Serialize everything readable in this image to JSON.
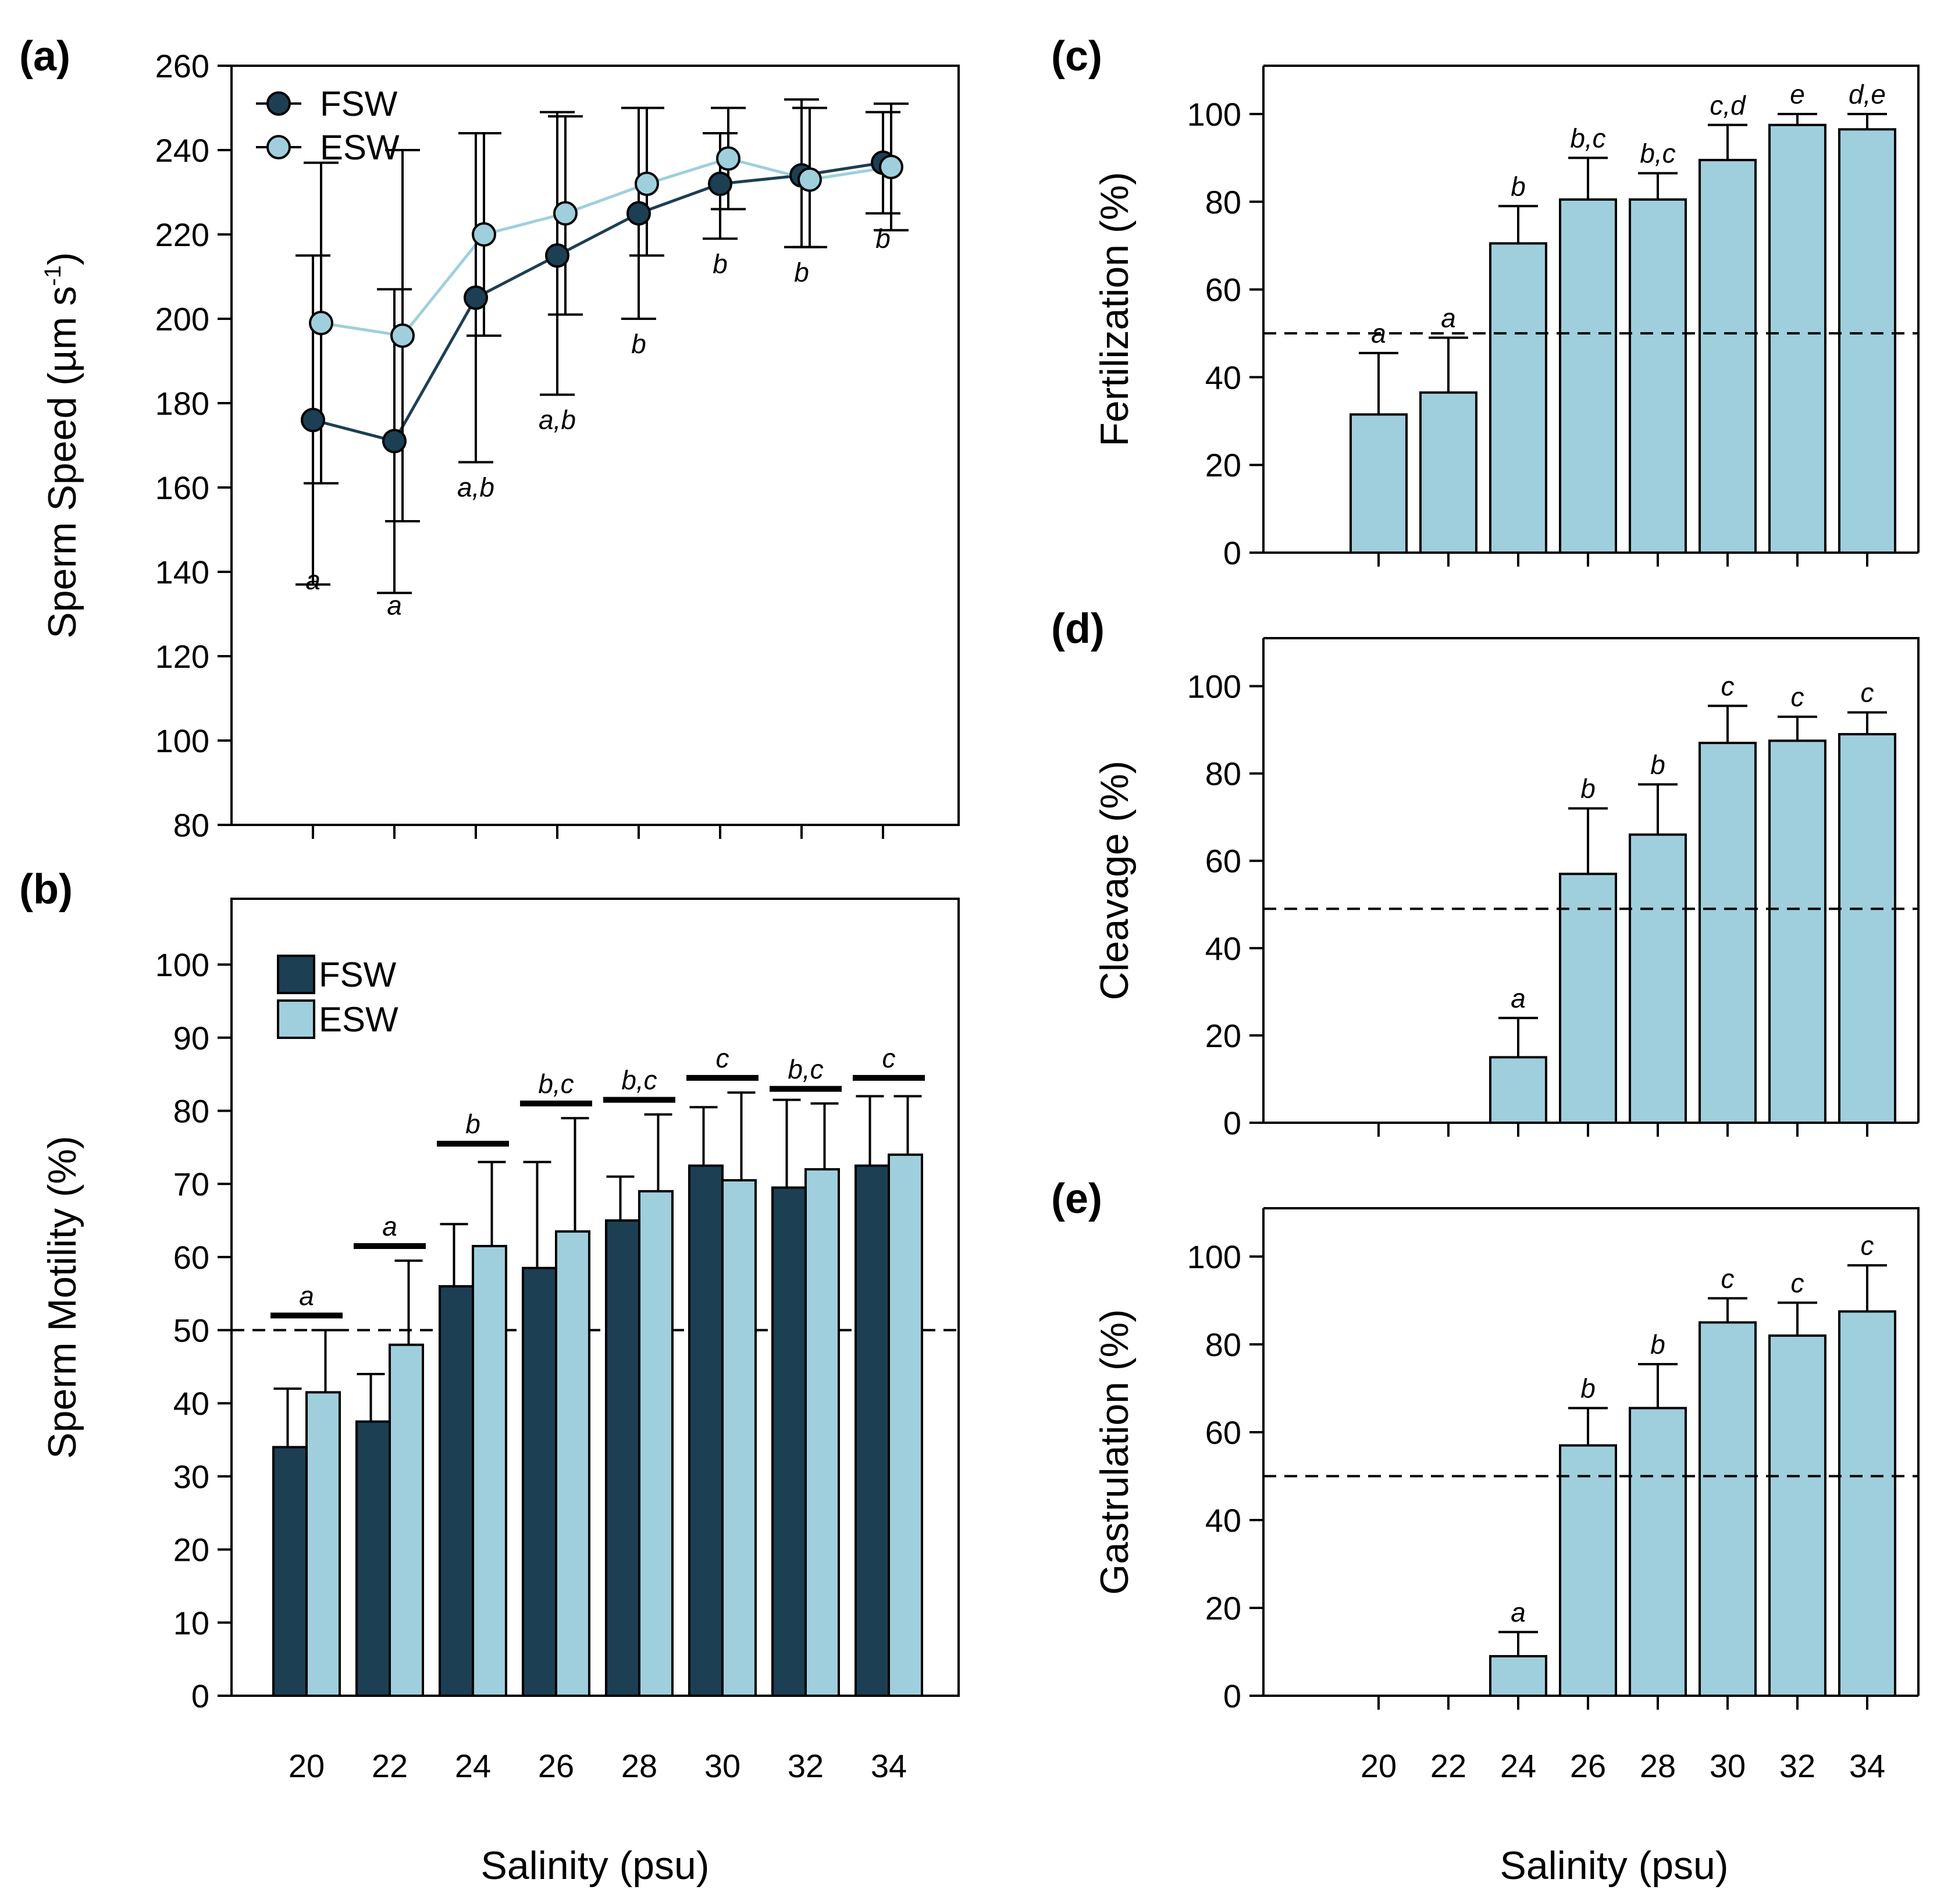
{
  "colors": {
    "fsw": "#1c3f53",
    "esw": "#9fcfdc",
    "line_fsw": "#1c3f53",
    "line_esw": "#9fcfdc",
    "axis": "#000000"
  },
  "salinity_label": "Salinity (psu)",
  "chart_data": [
    {
      "id": "a",
      "panel_label": "(a)",
      "type": "line",
      "title": "",
      "xlabel": "",
      "ylabel": "Sperm Speed (µm s",
      "ylabel_sup": "-1",
      "ylabel_close": ")",
      "x": [
        20,
        22,
        24,
        26,
        28,
        30,
        32,
        34
      ],
      "ylim": [
        80,
        260
      ],
      "yticks": [
        80,
        100,
        120,
        140,
        160,
        180,
        200,
        220,
        240,
        260
      ],
      "legend": [
        "FSW",
        "ESW"
      ],
      "legend_position": "top-left",
      "series": [
        {
          "name": "FSW",
          "values": [
            176,
            171,
            205,
            215,
            225,
            232,
            234,
            237
          ],
          "err_low": [
            137,
            135,
            166,
            182,
            200,
            219,
            217,
            225
          ],
          "err_high": [
            215,
            207,
            244,
            249,
            250,
            244,
            252,
            249
          ]
        },
        {
          "name": "ESW",
          "values": [
            199,
            196,
            220,
            225,
            232,
            238,
            233,
            236
          ],
          "err_low": [
            161,
            152,
            196,
            201,
            215,
            226,
            217,
            221
          ],
          "err_high": [
            237,
            240,
            244,
            248,
            250,
            250,
            250,
            251
          ]
        }
      ],
      "significance": [
        {
          "x": 20,
          "y": 140,
          "label": "a"
        },
        {
          "x": 22,
          "y": 134,
          "label": "a"
        },
        {
          "x": 24,
          "y": 162,
          "label": "a,b"
        },
        {
          "x": 26,
          "y": 178,
          "label": "a,b"
        },
        {
          "x": 28,
          "y": 196,
          "label": "b"
        },
        {
          "x": 30,
          "y": 215,
          "label": "b"
        },
        {
          "x": 32,
          "y": 213,
          "label": "b"
        },
        {
          "x": 34,
          "y": 221,
          "label": "b"
        }
      ]
    },
    {
      "id": "b",
      "panel_label": "(b)",
      "type": "bar",
      "title": "",
      "xlabel": "Salinity (psu)",
      "ylabel": "Sperm Motility (%)",
      "categories": [
        "20",
        "22",
        "24",
        "26",
        "28",
        "30",
        "32",
        "34"
      ],
      "ylim": [
        0,
        109
      ],
      "yticks": [
        0,
        10,
        20,
        30,
        40,
        50,
        60,
        70,
        80,
        90,
        100
      ],
      "reference_line": 50,
      "legend": [
        "FSW",
        "ESW"
      ],
      "legend_position": "top-left",
      "series": [
        {
          "name": "FSW",
          "values": [
            34,
            37.5,
            56,
            58.5,
            65,
            72.5,
            69.5,
            72.5
          ],
          "err_high": [
            42,
            44,
            64.5,
            73,
            71,
            80.5,
            81.5,
            82
          ]
        },
        {
          "name": "ESW",
          "values": [
            41.5,
            48,
            61.5,
            63.5,
            69,
            70.5,
            72,
            74
          ],
          "err_high": [
            50,
            59.5,
            73,
            79,
            79.5,
            82.5,
            81,
            82
          ]
        }
      ],
      "significance": [
        {
          "bar_y": 52,
          "label": "a"
        },
        {
          "bar_y": 61.5,
          "label": "a"
        },
        {
          "bar_y": 75.5,
          "label": "b"
        },
        {
          "bar_y": 81,
          "label": "b,c"
        },
        {
          "bar_y": 81.5,
          "label": "b,c"
        },
        {
          "bar_y": 84.5,
          "label": "c"
        },
        {
          "bar_y": 83,
          "label": "b,c"
        },
        {
          "bar_y": 84.5,
          "label": "c"
        }
      ]
    },
    {
      "id": "c",
      "panel_label": "(c)",
      "type": "bar",
      "title": "",
      "xlabel": "",
      "ylabel": "Fertilization (%)",
      "categories": [
        "20",
        "22",
        "24",
        "26",
        "28",
        "30",
        "32",
        "34"
      ],
      "ylim": [
        0,
        111
      ],
      "yticks": [
        0,
        20,
        40,
        60,
        80,
        100
      ],
      "reference_line": 50,
      "series": [
        {
          "name": "Fertilization",
          "values": [
            31.5,
            36.5,
            70.5,
            80.5,
            80.5,
            89.5,
            97.5,
            96.5
          ],
          "err_high": [
            45.5,
            49,
            79,
            90,
            86.5,
            97.5,
            100,
            100
          ]
        }
      ],
      "significance": [
        "a",
        "a",
        "b",
        "b,c",
        "b,c",
        "c,d",
        "e",
        "d,e"
      ]
    },
    {
      "id": "d",
      "panel_label": "(d)",
      "type": "bar",
      "title": "",
      "xlabel": "",
      "ylabel": "Cleavage (%)",
      "categories": [
        "20",
        "22",
        "24",
        "26",
        "28",
        "30",
        "32",
        "34"
      ],
      "ylim": [
        0,
        111
      ],
      "yticks": [
        0,
        20,
        40,
        60,
        80,
        100
      ],
      "reference_line": 49,
      "series": [
        {
          "name": "Cleavage",
          "values": [
            0,
            0,
            15,
            57,
            66,
            87,
            87.5,
            89
          ],
          "err_high": [
            0,
            0,
            24,
            72,
            77.5,
            95.5,
            93,
            94
          ]
        }
      ],
      "significance": [
        "",
        "",
        "a",
        "b",
        "b",
        "c",
        "c",
        "c"
      ]
    },
    {
      "id": "e",
      "panel_label": "(e)",
      "type": "bar",
      "title": "",
      "xlabel": "Salinity (psu)",
      "ylabel": "Gastrulation (%)",
      "categories": [
        "20",
        "22",
        "24",
        "26",
        "28",
        "30",
        "32",
        "34"
      ],
      "ylim": [
        0,
        111
      ],
      "yticks": [
        0,
        20,
        40,
        60,
        80,
        100
      ],
      "reference_line": 50,
      "series": [
        {
          "name": "Gastrulation",
          "values": [
            0,
            0,
            9,
            57,
            65.5,
            85,
            82,
            87.5
          ],
          "err_high": [
            0,
            0,
            14.5,
            65.5,
            75.5,
            90.5,
            89.5,
            98
          ]
        }
      ],
      "significance": [
        "",
        "",
        "a",
        "b",
        "b",
        "c",
        "c",
        "c"
      ]
    }
  ]
}
